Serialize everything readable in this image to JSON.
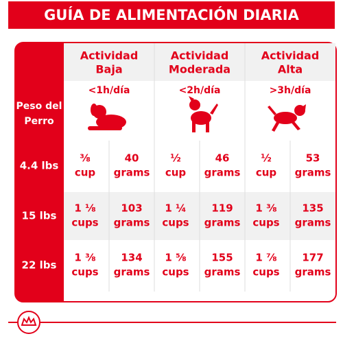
{
  "title": "GUÍA DE ALIMENTACIÓN DIARIA",
  "table": {
    "row_header": [
      "Peso del",
      "Perro"
    ],
    "activities": [
      {
        "name": [
          "Actividad",
          "Baja"
        ],
        "duration": "<1h/día"
      },
      {
        "name": [
          "Actividad",
          "Moderada"
        ],
        "duration": "<2h/día"
      },
      {
        "name": [
          "Actividad",
          "Alta"
        ],
        "duration": ">3h/día"
      }
    ],
    "rows": [
      {
        "weight": "4.4 lbs",
        "cells": [
          [
            "⅜",
            "cup",
            "40",
            "grams"
          ],
          [
            "½",
            "cup",
            "46",
            "grams"
          ],
          [
            "½",
            "cup",
            "53",
            "grams"
          ]
        ]
      },
      {
        "weight": "15 lbs",
        "cells": [
          [
            "1 ⅛",
            "cups",
            "103",
            "grams"
          ],
          [
            "1 ¼",
            "cups",
            "119",
            "grams"
          ],
          [
            "1 ⅜",
            "cups",
            "135",
            "grams"
          ]
        ]
      },
      {
        "weight": "22 lbs",
        "cells": [
          [
            "1 ⅜",
            "cups",
            "134",
            "grams"
          ],
          [
            "1 ⅝",
            "cups",
            "155",
            "grams"
          ],
          [
            "1 ⅞",
            "cups",
            "177",
            "grams"
          ]
        ]
      }
    ]
  }
}
